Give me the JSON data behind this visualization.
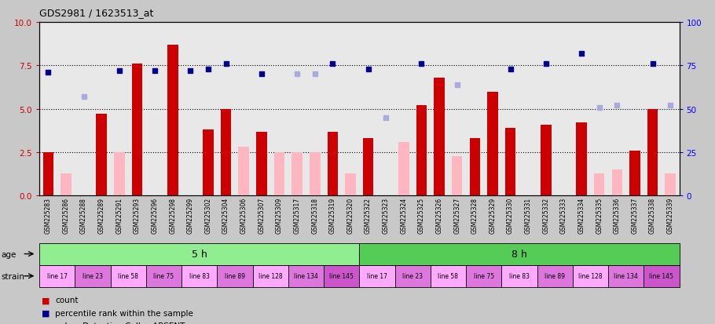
{
  "title": "GDS2981 / 1623513_at",
  "samples": [
    "GSM225283",
    "GSM225286",
    "GSM225288",
    "GSM225289",
    "GSM225291",
    "GSM225293",
    "GSM225296",
    "GSM225298",
    "GSM225299",
    "GSM225302",
    "GSM225304",
    "GSM225306",
    "GSM225307",
    "GSM225309",
    "GSM225317",
    "GSM225318",
    "GSM225319",
    "GSM225320",
    "GSM225322",
    "GSM225323",
    "GSM225324",
    "GSM225325",
    "GSM225326",
    "GSM225327",
    "GSM225328",
    "GSM225329",
    "GSM225330",
    "GSM225331",
    "GSM225332",
    "GSM225333",
    "GSM225334",
    "GSM225335",
    "GSM225336",
    "GSM225337",
    "GSM225338",
    "GSM225339"
  ],
  "count_values": [
    2.5,
    null,
    null,
    4.7,
    null,
    7.6,
    null,
    8.7,
    null,
    3.8,
    5.0,
    null,
    3.7,
    null,
    null,
    null,
    3.7,
    null,
    3.3,
    null,
    null,
    5.2,
    6.8,
    null,
    3.3,
    6.0,
    3.9,
    null,
    4.1,
    null,
    4.2,
    null,
    null,
    2.6,
    5.0,
    null
  ],
  "count_absent": [
    null,
    1.3,
    null,
    null,
    2.5,
    null,
    null,
    null,
    null,
    null,
    null,
    2.8,
    null,
    2.5,
    2.5,
    2.5,
    null,
    1.3,
    null,
    null,
    3.1,
    null,
    null,
    2.3,
    null,
    null,
    null,
    null,
    null,
    null,
    null,
    1.3,
    1.5,
    null,
    null,
    1.3
  ],
  "rank_values": [
    71,
    null,
    null,
    null,
    72,
    null,
    72,
    null,
    72,
    73,
    76,
    null,
    70,
    null,
    null,
    null,
    76,
    null,
    73,
    null,
    null,
    76,
    null,
    null,
    null,
    null,
    73,
    null,
    76,
    null,
    82,
    null,
    null,
    null,
    76,
    null
  ],
  "rank_absent": [
    null,
    null,
    57,
    null,
    null,
    null,
    null,
    null,
    null,
    null,
    null,
    null,
    null,
    null,
    70,
    70,
    null,
    null,
    null,
    45,
    null,
    null,
    null,
    64,
    null,
    null,
    null,
    null,
    null,
    null,
    null,
    51,
    52,
    null,
    null,
    52
  ],
  "age_groups": [
    {
      "label": "5 h",
      "start": 0,
      "end": 18,
      "color": "#90EE90"
    },
    {
      "label": "8 h",
      "start": 18,
      "end": 36,
      "color": "#55CC55"
    }
  ],
  "strain_groups": [
    {
      "label": "line 17",
      "start": 0,
      "end": 2,
      "color": "#FFAAFF"
    },
    {
      "label": "line 23",
      "start": 2,
      "end": 4,
      "color": "#DD77DD"
    },
    {
      "label": "line 58",
      "start": 4,
      "end": 6,
      "color": "#FFAAFF"
    },
    {
      "label": "line 75",
      "start": 6,
      "end": 8,
      "color": "#DD77DD"
    },
    {
      "label": "line 83",
      "start": 8,
      "end": 10,
      "color": "#FFAAFF"
    },
    {
      "label": "line 89",
      "start": 10,
      "end": 12,
      "color": "#DD77DD"
    },
    {
      "label": "line 128",
      "start": 12,
      "end": 14,
      "color": "#FFAAFF"
    },
    {
      "label": "line 134",
      "start": 14,
      "end": 16,
      "color": "#DD77DD"
    },
    {
      "label": "line 145",
      "start": 16,
      "end": 18,
      "color": "#CC55CC"
    },
    {
      "label": "line 17",
      "start": 18,
      "end": 20,
      "color": "#FFAAFF"
    },
    {
      "label": "line 23",
      "start": 20,
      "end": 22,
      "color": "#DD77DD"
    },
    {
      "label": "line 58",
      "start": 22,
      "end": 24,
      "color": "#FFAAFF"
    },
    {
      "label": "line 75",
      "start": 24,
      "end": 26,
      "color": "#DD77DD"
    },
    {
      "label": "line 83",
      "start": 26,
      "end": 28,
      "color": "#FFAAFF"
    },
    {
      "label": "line 89",
      "start": 28,
      "end": 30,
      "color": "#DD77DD"
    },
    {
      "label": "line 128",
      "start": 30,
      "end": 32,
      "color": "#FFAAFF"
    },
    {
      "label": "line 134",
      "start": 32,
      "end": 34,
      "color": "#DD77DD"
    },
    {
      "label": "line 145",
      "start": 34,
      "end": 36,
      "color": "#CC55CC"
    }
  ],
  "ylim_left": [
    0,
    10
  ],
  "ylim_right": [
    0,
    100
  ],
  "yticks_left": [
    0,
    2.5,
    5.0,
    7.5,
    10
  ],
  "yticks_right": [
    0,
    25,
    50,
    75,
    100
  ],
  "bar_color": "#CC0000",
  "bar_absent_color": "#FFB6C1",
  "dot_color": "#00008B",
  "dot_absent_color": "#AAAADD",
  "background_color": "#C8C8C8",
  "plot_bg_color": "#E8E8E8"
}
